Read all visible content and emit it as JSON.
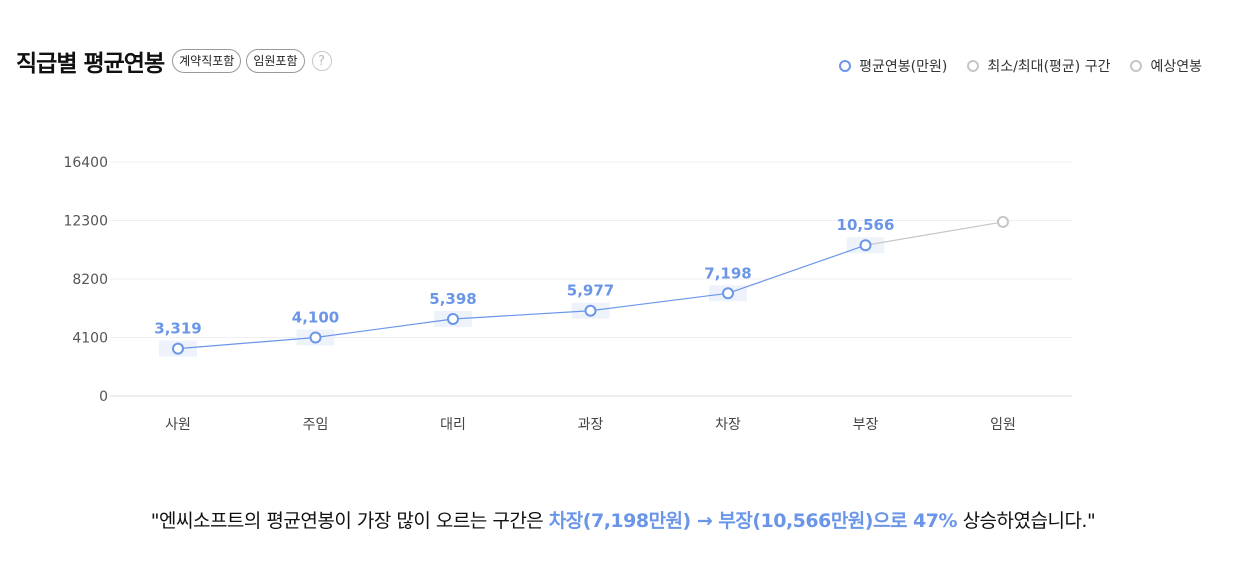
{
  "header": {
    "title": "직급별 평균연봉",
    "chips": [
      "계약직포함",
      "임원포함"
    ],
    "help_symbol": "?"
  },
  "legend": [
    {
      "label": "평균연봉(만원)",
      "color": "#6b96e8"
    },
    {
      "label": "최소/최대(평균) 구간",
      "color": "#c6c6c6"
    },
    {
      "label": "예상연봉",
      "color": "#c6c6c6"
    }
  ],
  "chart_data": {
    "type": "line",
    "categories": [
      "사원",
      "주임",
      "대리",
      "과장",
      "차장",
      "부장",
      "임원"
    ],
    "series": [
      {
        "name": "평균연봉(만원)",
        "values": [
          3319,
          4100,
          5398,
          5977,
          7198,
          10566,
          null
        ],
        "labels": [
          "3,319",
          "4,100",
          "5,398",
          "5,977",
          "7,198",
          "10,566",
          ""
        ],
        "color": "#6b96e8"
      },
      {
        "name": "예상연봉",
        "values": [
          null,
          null,
          null,
          null,
          null,
          10566,
          12200
        ],
        "color": "#c6c6c6"
      }
    ],
    "yticks": [
      0,
      4100,
      8200,
      12300,
      16400
    ],
    "ylim": [
      0,
      16400
    ],
    "grid": true,
    "legend_position": "top-right",
    "title": "직급별 평균연봉"
  },
  "summary": {
    "prefix": "\"엔씨소프트의 평균연봉이 가장 많이 오르는 구간은 ",
    "highlight": "차장(7,198만원) → 부장(10,566만원)으로 47%",
    "suffix": " 상승하였습니다.\""
  }
}
